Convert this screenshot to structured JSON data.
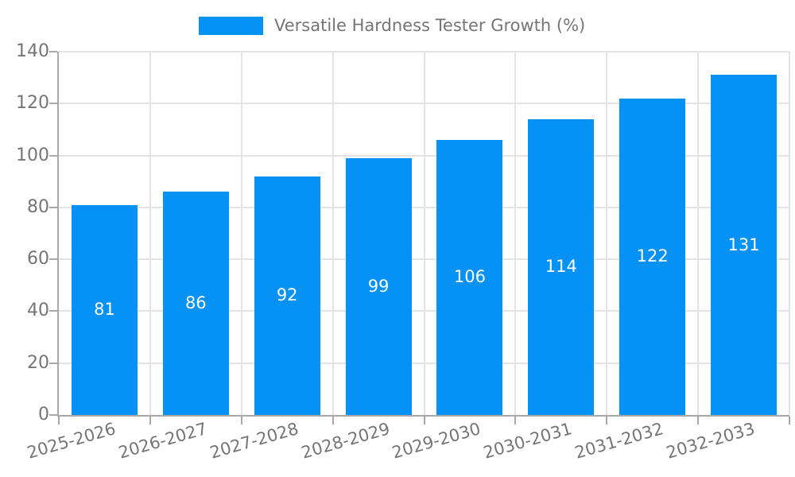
{
  "chart_data": {
    "type": "bar",
    "title": "",
    "categories": [
      "2025-2026",
      "2026-2027",
      "2027-2028",
      "2028-2029",
      "2029-2030",
      "2030-2031",
      "2031-2032",
      "2032-2033"
    ],
    "values": [
      81,
      86,
      92,
      99,
      106,
      114,
      122,
      131
    ],
    "xlabel": "",
    "ylabel": "",
    "ylim": [
      0,
      140
    ],
    "yticks": [
      0,
      20,
      40,
      60,
      80,
      100,
      120,
      140
    ],
    "grid": true,
    "legend": [
      "Versatile Hardness Tester Growth (%)"
    ],
    "legend_position": "top-center",
    "value_labels_inside_bars": true
  },
  "colors": {
    "bar": "#0691f5",
    "axis": "#a9a9a9",
    "grid": "#e4e4e4",
    "text": "#757575",
    "value_label": "#ffffff",
    "background": "#ffffff"
  }
}
